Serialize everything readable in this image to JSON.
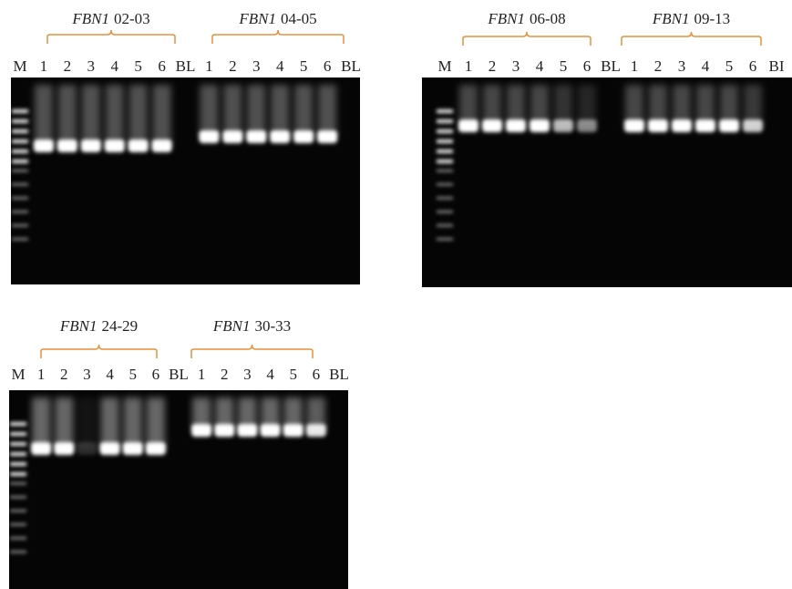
{
  "panels": [
    {
      "groups": [
        {
          "gene": "FBN1",
          "range": "02-03"
        },
        {
          "gene": "FBN1",
          "range": "04-05"
        }
      ],
      "lanes": [
        "M",
        "1",
        "2",
        "3",
        "4",
        "5",
        "6",
        "BL",
        "1",
        "2",
        "3",
        "4",
        "5",
        "6",
        "BL"
      ]
    },
    {
      "groups": [
        {
          "gene": "FBN1",
          "range": "06-08"
        },
        {
          "gene": "FBN1",
          "range": "09-13"
        }
      ],
      "lanes": [
        "M",
        "1",
        "2",
        "3",
        "4",
        "5",
        "6",
        "BL",
        "1",
        "2",
        "3",
        "4",
        "5",
        "6",
        "BI"
      ]
    },
    {
      "groups": [
        {
          "gene": "FBN1",
          "range": "24-29"
        },
        {
          "gene": "FBN1",
          "range": "30-33"
        }
      ],
      "lanes": [
        "M",
        "1",
        "2",
        "3",
        "4",
        "5",
        "6",
        "BL",
        "1",
        "2",
        "3",
        "4",
        "5",
        "6",
        "BL"
      ]
    }
  ]
}
